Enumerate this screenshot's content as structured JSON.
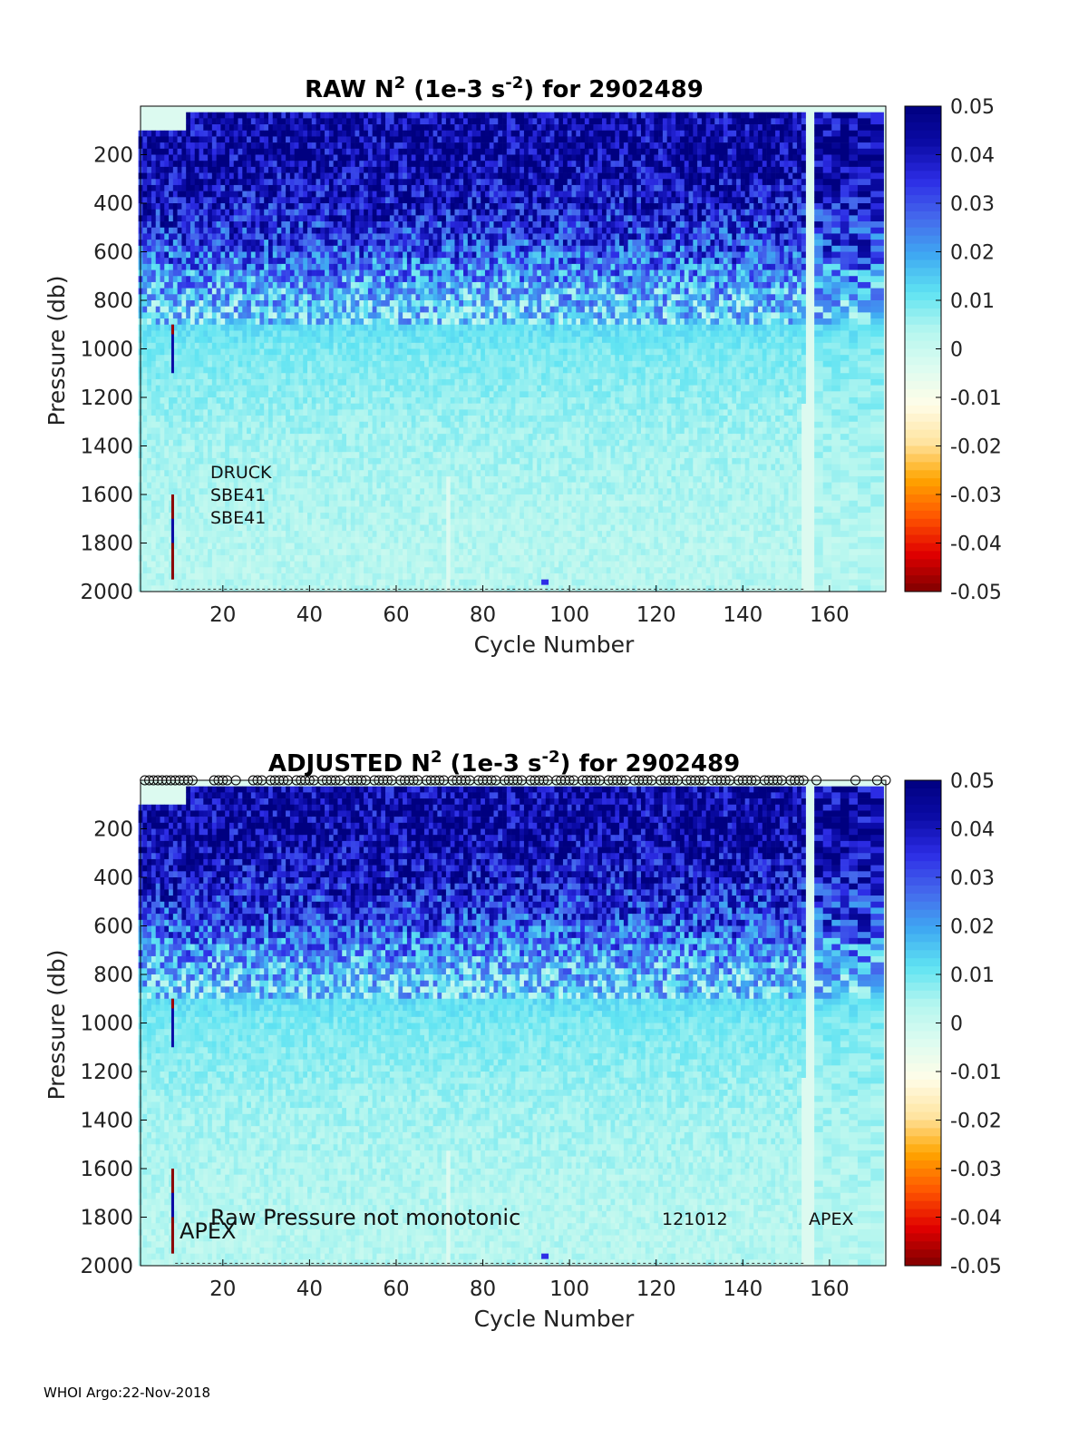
{
  "footer": "WHOI Argo:22-Nov-2018",
  "colors": {
    "colormap": [
      "#800000",
      "#e00000",
      "#ff5500",
      "#ffa500",
      "#ffe4a0",
      "#fffde8",
      "#ddfcf0",
      "#b4f6ef",
      "#5fe3f2",
      "#3fa9f2",
      "#4569ec",
      "#2d2de6",
      "#0b0ba6",
      "#000080"
    ],
    "ocean_background": "#dcfaf0"
  },
  "chart_data": [
    {
      "type": "heatmap",
      "title": "RAW N",
      "title_sup": "2",
      "title_units": " (1e-3 s",
      "title_units_sup": "-2",
      "title_suffix": ") for 2902489",
      "xlabel": "Cycle Number",
      "ylabel": "Pressure (db)",
      "xlim": [
        1,
        173
      ],
      "ylim": [
        2000,
        0
      ],
      "xticks": [
        20,
        40,
        60,
        80,
        100,
        120,
        140,
        160
      ],
      "yticks": [
        200,
        400,
        600,
        800,
        1000,
        1200,
        1400,
        1600,
        1800,
        2000
      ],
      "colorbar": {
        "min": -0.05,
        "max": 0.05,
        "ticks": [
          "0.05",
          "0.04",
          "0.03",
          "0.02",
          "0.01",
          "0",
          "-0.01",
          "-0.02",
          "-0.03",
          "-0.04",
          "-0.05"
        ]
      },
      "grid": false,
      "stratification_profile": {
        "pressure": [
          50,
          200,
          400,
          600,
          800,
          1000,
          1200,
          1400,
          1600,
          1800,
          2000
        ],
        "n2": [
          0.045,
          0.045,
          0.04,
          0.03,
          0.015,
          0.009,
          0.007,
          0.005,
          0.004,
          0.003,
          0.003
        ]
      },
      "annotations": [
        "DRUCK",
        "SBE41",
        "SBE41"
      ]
    },
    {
      "type": "heatmap",
      "title": "ADJUSTED N",
      "title_sup": "2",
      "title_units": " (1e-3 s",
      "title_units_sup": "-2",
      "title_suffix": ") for 2902489",
      "xlabel": "Cycle Number",
      "ylabel": "Pressure (db)",
      "xlim": [
        1,
        173
      ],
      "ylim": [
        2000,
        0
      ],
      "xticks": [
        20,
        40,
        60,
        80,
        100,
        120,
        140,
        160
      ],
      "yticks": [
        200,
        400,
        600,
        800,
        1000,
        1200,
        1400,
        1600,
        1800,
        2000
      ],
      "colorbar": {
        "min": -0.05,
        "max": 0.05,
        "ticks": [
          "0.05",
          "0.04",
          "0.03",
          "0.02",
          "0.01",
          "0",
          "-0.01",
          "-0.02",
          "-0.03",
          "-0.04",
          "-0.05"
        ]
      },
      "grid": false,
      "stratification_profile": {
        "pressure": [
          50,
          200,
          400,
          600,
          800,
          1000,
          1200,
          1400,
          1600,
          1800,
          2000
        ],
        "n2": [
          0.045,
          0.045,
          0.04,
          0.03,
          0.015,
          0.009,
          0.007,
          0.005,
          0.004,
          0.003,
          0.003
        ]
      },
      "annotations": [
        "Raw Pressure not monotonic",
        "APEX",
        "121012",
        "APEX"
      ]
    }
  ]
}
